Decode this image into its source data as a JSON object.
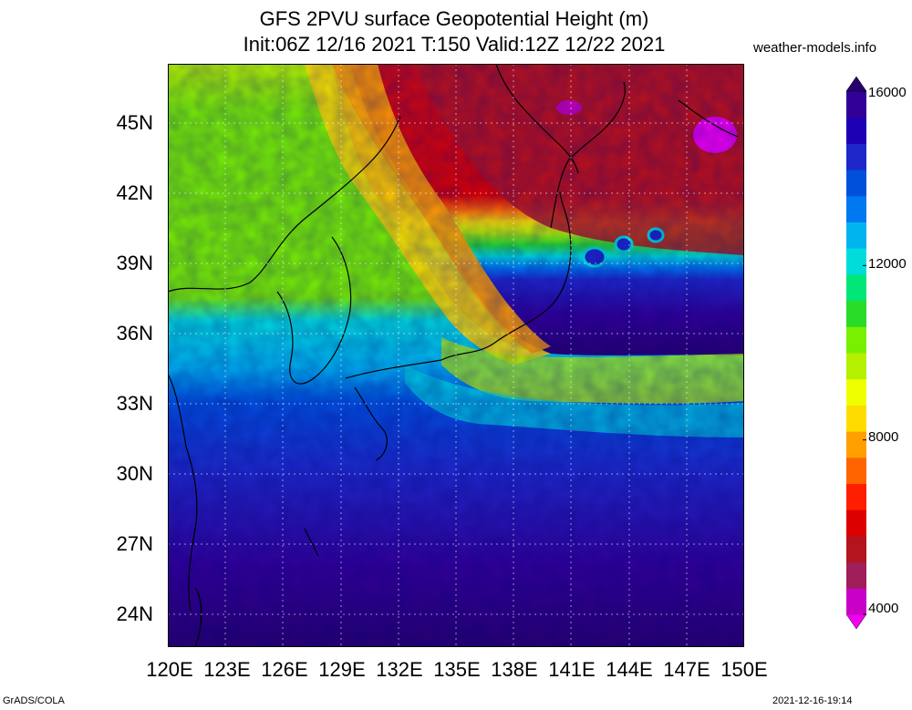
{
  "header": {
    "title_line1": "GFS 2PVU surface Geopotential Height (m)",
    "title_line2": "Init:06Z 12/16 2021 T:150 Valid:12Z 12/22 2021",
    "site": "weather-models.info"
  },
  "map": {
    "lat_labels": [
      "45N",
      "42N",
      "39N",
      "36N",
      "33N",
      "30N",
      "27N",
      "24N"
    ],
    "lon_labels": [
      "120E",
      "123E",
      "126E",
      "129E",
      "132E",
      "135E",
      "138E",
      "141E",
      "144E",
      "147E",
      "150E"
    ]
  },
  "colorbar": {
    "labels": [
      "16000",
      "12000",
      "8000",
      "4000"
    ],
    "colors": [
      "#f000f0",
      "#c800c8",
      "#a01e5a",
      "#b4141e",
      "#dc0000",
      "#ff1e00",
      "#ff6400",
      "#ffa000",
      "#ffdc00",
      "#f0ff00",
      "#b4f000",
      "#78f000",
      "#28dc28",
      "#00e678",
      "#00dcdc",
      "#00b4f0",
      "#0078f0",
      "#0050dc",
      "#1e28c8",
      "#1e00b4",
      "#320096",
      "#28006e"
    ]
  },
  "footer": {
    "left": "GrADS/COLA",
    "right": "2021-12-16-19:14"
  }
}
